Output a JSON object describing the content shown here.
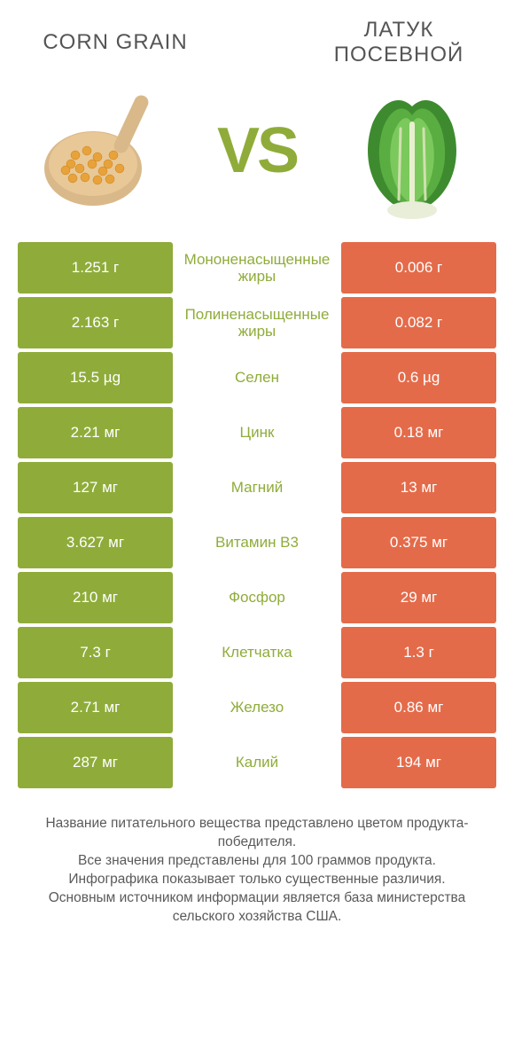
{
  "colors": {
    "green": "#8fac3a",
    "orange": "#e46b4a",
    "label": "#8fac3a",
    "title": "#555555",
    "footer": "#5a5a5a",
    "bg": "#ffffff"
  },
  "header": {
    "left_title": "CORN GRAIN",
    "right_title": "ЛАТУК ПОСЕВНОЙ",
    "vs": "VS"
  },
  "comparison": {
    "type": "table",
    "rows": [
      {
        "left": "1.251 г",
        "label": "Мононенасыщенные жиры",
        "right": "0.006 г"
      },
      {
        "left": "2.163 г",
        "label": "Полиненасыщенные жиры",
        "right": "0.082 г"
      },
      {
        "left": "15.5 µg",
        "label": "Селен",
        "right": "0.6 µg"
      },
      {
        "left": "2.21 мг",
        "label": "Цинк",
        "right": "0.18 мг"
      },
      {
        "left": "127 мг",
        "label": "Магний",
        "right": "13 мг"
      },
      {
        "left": "3.627 мг",
        "label": "Витамин B3",
        "right": "0.375 мг"
      },
      {
        "left": "210 мг",
        "label": "Фосфор",
        "right": "29 мг"
      },
      {
        "left": "7.3 г",
        "label": "Клетчатка",
        "right": "1.3 г"
      },
      {
        "left": "2.71 мг",
        "label": "Железо",
        "right": "0.86 мг"
      },
      {
        "left": "287 мг",
        "label": "Калий",
        "right": "194 мг"
      }
    ]
  },
  "footer": {
    "line1": "Название питательного вещества представлено цветом продукта-победителя.",
    "line2": "Все значения представлены для 100 граммов продукта.",
    "line3": "Инфографика показывает только существенные различия.",
    "line4": "Основным источником информации является база министерства сельского хозяйства США."
  },
  "fontsize": {
    "title": 24,
    "vs": 72,
    "cell": 17,
    "label": 17,
    "footer": 15.5
  }
}
